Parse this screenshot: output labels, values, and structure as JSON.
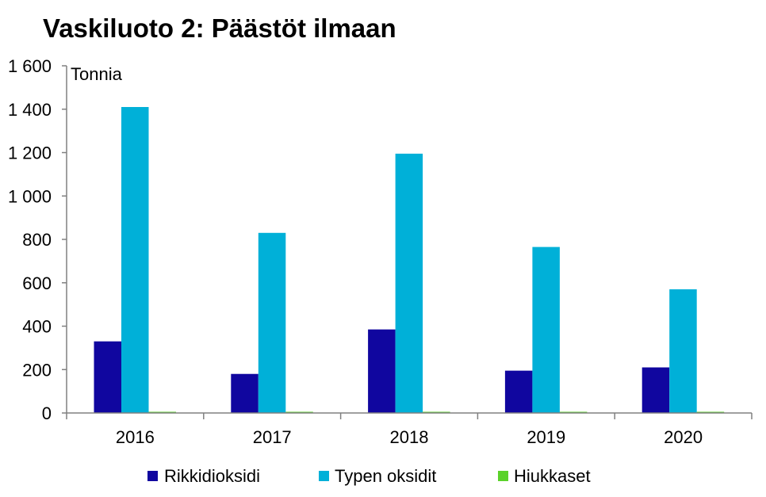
{
  "chart_data": {
    "type": "bar",
    "title": "Vaskiluoto 2: Päästöt ilmaan",
    "unit_label": "Tonnia",
    "categories": [
      "2016",
      "2017",
      "2018",
      "2019",
      "2020"
    ],
    "series": [
      {
        "name": "Rikkidioksidi",
        "color": "#10069F",
        "values": [
          330,
          180,
          385,
          195,
          210
        ]
      },
      {
        "name": "Typen oksidit",
        "color": "#00B0D8",
        "values": [
          1410,
          830,
          1195,
          765,
          570
        ]
      },
      {
        "name": "Hiukkaset",
        "color": "#5BD22B",
        "values": [
          5,
          5,
          5,
          5,
          5
        ]
      }
    ],
    "y_ticks": [
      "1 600",
      "1 400",
      "1 200",
      "1 000",
      "800",
      "600",
      "400",
      "200",
      "0"
    ],
    "y_tick_values": [
      1600,
      1400,
      1200,
      1000,
      800,
      600,
      400,
      200,
      0
    ],
    "ylim": [
      0,
      1600
    ],
    "grid": false,
    "legend_position": "bottom"
  }
}
